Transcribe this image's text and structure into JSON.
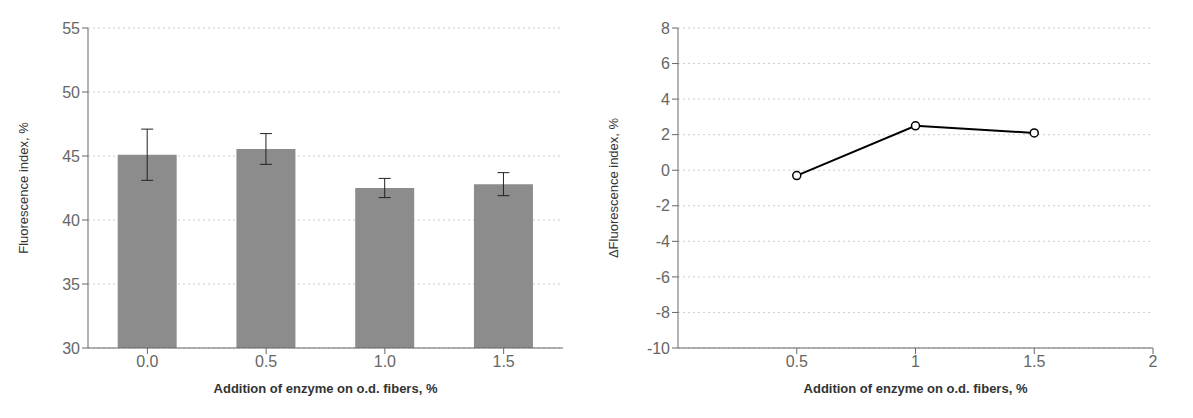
{
  "chart_data": [
    {
      "type": "bar",
      "categories": [
        "0.0",
        "0.5",
        "1.0",
        "1.5"
      ],
      "values": [
        45.1,
        45.55,
        42.5,
        42.8
      ],
      "errors": [
        2.0,
        1.2,
        0.75,
        0.9
      ],
      "color": "#8c8c8c",
      "xlabel": "Addition of enzyme on o.d. fibers, %",
      "ylabel": "Fluorescence index, %",
      "ylim": [
        30,
        55
      ],
      "yticks": [
        30,
        35,
        40,
        45,
        50,
        55
      ],
      "grid": true
    },
    {
      "type": "line",
      "x": [
        0.5,
        1.0,
        1.5
      ],
      "values": [
        -0.3,
        2.5,
        2.1
      ],
      "color": "#000000",
      "marker": "circle",
      "xlabel": "Addition of enzyme on o.d. fibers, %",
      "ylabel": "ΔFluorescence index, %",
      "xlim": [
        0,
        2
      ],
      "xticks": [
        0.5,
        1,
        1.5,
        2
      ],
      "ylim": [
        -10,
        8
      ],
      "yticks": [
        -10,
        -8,
        -6,
        -4,
        -2,
        0,
        2,
        4,
        6,
        8
      ],
      "grid": true
    }
  ]
}
